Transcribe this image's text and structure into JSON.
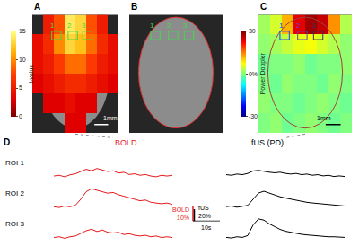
{
  "chart_data": [
    {
      "type": "heatmap",
      "panel": "A",
      "colorbar_title": "t-value",
      "zlim": [
        0,
        15
      ],
      "zticks": [
        0,
        5,
        10,
        15
      ],
      "xlim": [
        0,
        8
      ],
      "ylim": [
        0,
        6
      ],
      "tick_labels": false,
      "x": [
        0.5,
        1.5,
        2.5,
        3.5,
        4.5,
        5.5,
        6.5,
        7.5
      ],
      "y": [
        0.5,
        1.5,
        2.5,
        3.5,
        4.5,
        5.5
      ],
      "z": [
        [
          null,
          null,
          null,
          3,
          3,
          null,
          null,
          null
        ],
        [
          null,
          3,
          3,
          4,
          3,
          3,
          null,
          null
        ],
        [
          3,
          4,
          5,
          6,
          6,
          5,
          4,
          3
        ],
        [
          4,
          5,
          7,
          9,
          9,
          7,
          5,
          4
        ],
        [
          4,
          6,
          10,
          13,
          12,
          9,
          6,
          4
        ],
        [
          null,
          5,
          8,
          14,
          13,
          8,
          5,
          null
        ]
      ],
      "roi_labels": [
        "1",
        "2",
        "3"
      ],
      "scale_label": "1mm"
    },
    {
      "type": "image",
      "panel": "B",
      "roi_labels": [
        "1",
        "2",
        "3"
      ]
    },
    {
      "type": "heatmap",
      "panel": "C",
      "colorbar_title": "Power Doppler",
      "zlim": [
        -30,
        30
      ],
      "zticks": [
        -30,
        {
          "value": 0,
          "label": "0%"
        },
        30
      ],
      "xlim": [
        0,
        8
      ],
      "ylim": [
        0,
        6
      ],
      "tick_labels": false,
      "x": [
        0.5,
        1.5,
        2.5,
        3.5,
        4.5,
        5.5,
        6.5,
        7.5
      ],
      "y": [
        0.5,
        1.5,
        2.5,
        3.5,
        4.5,
        5.5
      ],
      "z": [
        [
          0,
          1,
          -1,
          0,
          1,
          0,
          -1,
          0
        ],
        [
          1,
          0,
          0,
          -1,
          0,
          1,
          0,
          -1
        ],
        [
          0,
          -1,
          1,
          0,
          0,
          -1,
          1,
          0
        ],
        [
          -1,
          0,
          0,
          1,
          -1,
          0,
          0,
          1
        ],
        [
          1,
          2,
          4,
          6,
          7,
          5,
          3,
          1
        ],
        [
          2,
          5,
          12,
          24,
          28,
          26,
          14,
          3
        ]
      ],
      "roi_labels": [
        "1",
        "2",
        "3"
      ],
      "scale_label": "1mm"
    },
    {
      "type": "line",
      "panel": "D",
      "tick_labels": false,
      "xlim": [
        0,
        44
      ],
      "x": [
        0,
        2,
        4,
        6,
        8,
        10,
        12,
        14,
        16,
        18,
        20,
        22,
        24,
        26,
        28,
        30,
        32,
        34,
        36,
        38,
        40,
        42,
        44
      ],
      "rows": [
        "ROI 1",
        "ROI 2",
        "ROI 3"
      ],
      "columns": [
        {
          "title": "BOLD",
          "color": "#e41a1c",
          "ylim": [
            -4,
            14
          ],
          "values": [
            [
              0,
              0.5,
              -0.5,
              0.8,
              1.5,
              3,
              4.5,
              3.5,
              5,
              4,
              3,
              3.5,
              2,
              2.5,
              1,
              1.5,
              0.5,
              1,
              0,
              -0.5,
              0.5,
              0,
              0.5
            ],
            [
              0,
              -0.5,
              0.5,
              0,
              1,
              5,
              10,
              12,
              11,
              10,
              9,
              9.5,
              8,
              7,
              6,
              5,
              4,
              4.5,
              3,
              2.5,
              2,
              2.5,
              1.5
            ],
            [
              0,
              0.5,
              -0.5,
              0.5,
              1,
              3,
              4.5,
              5.5,
              4,
              5,
              3.5,
              3,
              3.5,
              2,
              2.5,
              1.5,
              1,
              1.5,
              0.5,
              1,
              0,
              0.5,
              0
            ]
          ]
        },
        {
          "title": "fUS (PD)",
          "color": "#000000",
          "ylim": [
            -10,
            34
          ],
          "values": [
            [
              2,
              1,
              3,
              2,
              4,
              8,
              9,
              7,
              6,
              5,
              6,
              4,
              3,
              4,
              2,
              3,
              1,
              2,
              0,
              1,
              -1,
              0,
              -1
            ],
            [
              0,
              1,
              -1,
              0,
              2,
              12,
              22,
              25,
              22,
              18,
              16,
              14,
              12,
              10,
              9,
              7,
              6,
              5,
              4,
              3,
              3,
              2,
              1
            ],
            [
              0,
              -1,
              1,
              0,
              3,
              20,
              30,
              28,
              22,
              17,
              13,
              10,
              8,
              6,
              5,
              4,
              3,
              2,
              2,
              1,
              1,
              0,
              0
            ]
          ]
        }
      ],
      "scale_bars": {
        "time": {
          "value": 10,
          "label": "10s"
        },
        "BOLD": {
          "name": "BOLD",
          "value": 10,
          "label": "10%"
        },
        "fUS": {
          "name": "fUS",
          "value": 20,
          "label": "20%"
        }
      }
    }
  ]
}
